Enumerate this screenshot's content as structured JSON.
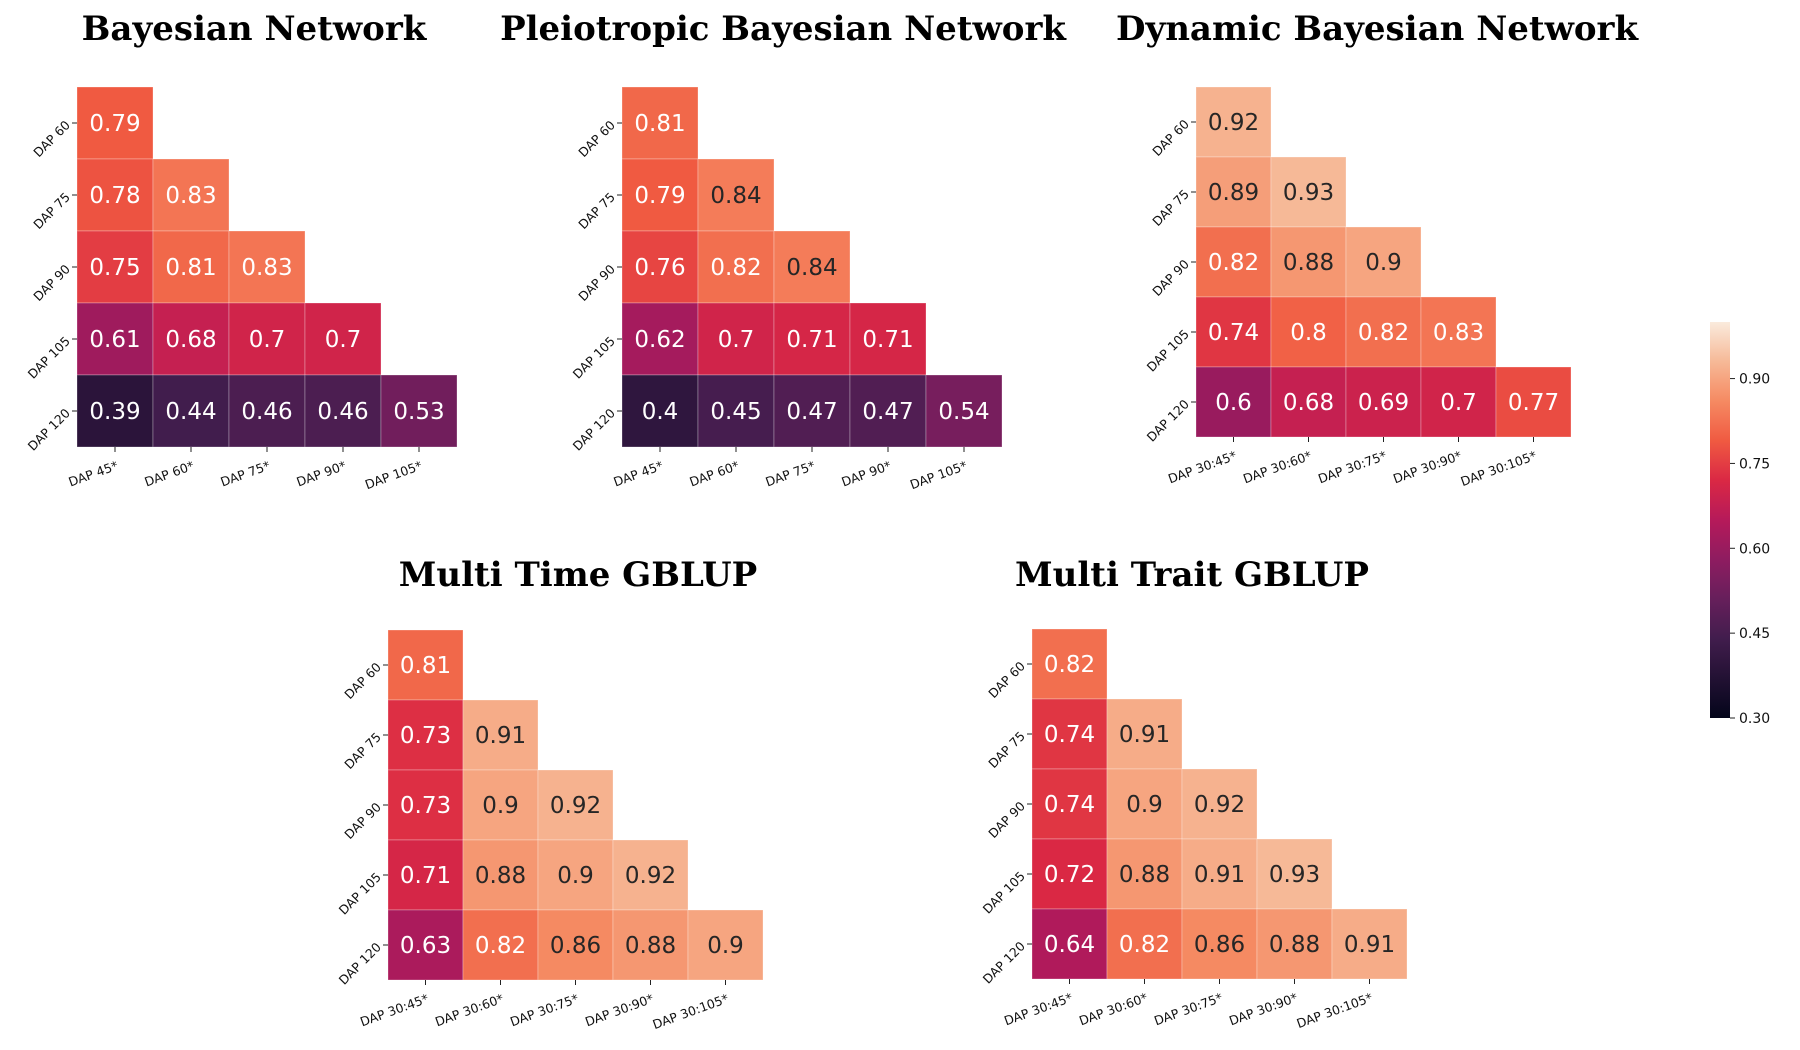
{
  "colorbar": {
    "vmin": 0.3,
    "vmax": 1.0,
    "tick_labels": [
      "0.30",
      "0.45",
      "0.60",
      "0.75",
      "0.90"
    ],
    "colormap": "rocket"
  },
  "chart_data": [
    {
      "type": "heatmap",
      "title": "Bayesian Network",
      "row_labels": [
        "DAP 60",
        "DAP 75",
        "DAP 90",
        "DAP 105",
        "DAP 120"
      ],
      "col_labels": [
        "DAP 45*",
        "DAP 60*",
        "DAP 75*",
        "DAP 90*",
        "DAP 105*"
      ],
      "values": [
        [
          0.79
        ],
        [
          0.78,
          0.83
        ],
        [
          0.75,
          0.81,
          0.83
        ],
        [
          0.61,
          0.68,
          0.7,
          0.7
        ],
        [
          0.39,
          0.44,
          0.46,
          0.46,
          0.53
        ]
      ],
      "value_labels": [
        [
          "0.79"
        ],
        [
          "0.78",
          "0.83"
        ],
        [
          "0.75",
          "0.81",
          "0.83"
        ],
        [
          "0.61",
          "0.68",
          "0.7",
          "0.7"
        ],
        [
          "0.39",
          "0.44",
          "0.46",
          "0.46",
          "0.53"
        ]
      ]
    },
    {
      "type": "heatmap",
      "title": "Pleiotropic Bayesian Network",
      "row_labels": [
        "DAP 60",
        "DAP 75",
        "DAP 90",
        "DAP 105",
        "DAP 120"
      ],
      "col_labels": [
        "DAP 45*",
        "DAP 60*",
        "DAP 75*",
        "DAP 90*",
        "DAP 105*"
      ],
      "values": [
        [
          0.81
        ],
        [
          0.79,
          0.84
        ],
        [
          0.76,
          0.82,
          0.84
        ],
        [
          0.62,
          0.7,
          0.71,
          0.71
        ],
        [
          0.4,
          0.45,
          0.47,
          0.47,
          0.54
        ]
      ],
      "value_labels": [
        [
          "0.81"
        ],
        [
          "0.79",
          "0.84"
        ],
        [
          "0.76",
          "0.82",
          "0.84"
        ],
        [
          "0.62",
          "0.7",
          "0.71",
          "0.71"
        ],
        [
          "0.4",
          "0.45",
          "0.47",
          "0.47",
          "0.54"
        ]
      ]
    },
    {
      "type": "heatmap",
      "title": "Dynamic Bayesian Network",
      "row_labels": [
        "DAP 60",
        "DAP 75",
        "DAP 90",
        "DAP 105",
        "DAP 120"
      ],
      "col_labels": [
        "DAP 30:45*",
        "DAP 30:60*",
        "DAP 30:75*",
        "DAP 30:90*",
        "DAP 30:105*"
      ],
      "values": [
        [
          0.92
        ],
        [
          0.89,
          0.93
        ],
        [
          0.82,
          0.88,
          0.9
        ],
        [
          0.74,
          0.8,
          0.82,
          0.83
        ],
        [
          0.6,
          0.68,
          0.69,
          0.7,
          0.77
        ]
      ],
      "value_labels": [
        [
          "0.92"
        ],
        [
          "0.89",
          "0.93"
        ],
        [
          "0.82",
          "0.88",
          "0.9"
        ],
        [
          "0.74",
          "0.8",
          "0.82",
          "0.83"
        ],
        [
          "0.6",
          "0.68",
          "0.69",
          "0.7",
          "0.77"
        ]
      ]
    },
    {
      "type": "heatmap",
      "title": "Multi Time GBLUP",
      "row_labels": [
        "DAP 60",
        "DAP 75",
        "DAP 90",
        "DAP 105",
        "DAP 120"
      ],
      "col_labels": [
        "DAP 30:45*",
        "DAP 30:60*",
        "DAP 30:75*",
        "DAP 30:90*",
        "DAP 30:105*"
      ],
      "values": [
        [
          0.81
        ],
        [
          0.73,
          0.91
        ],
        [
          0.73,
          0.9,
          0.92
        ],
        [
          0.71,
          0.88,
          0.9,
          0.92
        ],
        [
          0.63,
          0.82,
          0.86,
          0.88,
          0.9
        ]
      ],
      "value_labels": [
        [
          "0.81"
        ],
        [
          "0.73",
          "0.91"
        ],
        [
          "0.73",
          "0.9",
          "0.92"
        ],
        [
          "0.71",
          "0.88",
          "0.9",
          "0.92"
        ],
        [
          "0.63",
          "0.82",
          "0.86",
          "0.88",
          "0.9"
        ]
      ]
    },
    {
      "type": "heatmap",
      "title": "Multi Trait GBLUP",
      "row_labels": [
        "DAP 60",
        "DAP 75",
        "DAP 90",
        "DAP 105",
        "DAP 120"
      ],
      "col_labels": [
        "DAP 30:45*",
        "DAP 30:60*",
        "DAP 30:75*",
        "DAP 30:90*",
        "DAP 30:105*"
      ],
      "values": [
        [
          0.82
        ],
        [
          0.74,
          0.91
        ],
        [
          0.74,
          0.9,
          0.92
        ],
        [
          0.72,
          0.88,
          0.91,
          0.93
        ],
        [
          0.64,
          0.82,
          0.86,
          0.88,
          0.91
        ]
      ],
      "value_labels": [
        [
          "0.82"
        ],
        [
          "0.74",
          "0.91"
        ],
        [
          "0.74",
          "0.9",
          "0.92"
        ],
        [
          "0.72",
          "0.88",
          "0.91",
          "0.93"
        ],
        [
          "0.64",
          "0.82",
          "0.86",
          "0.88",
          "0.91"
        ]
      ]
    }
  ]
}
